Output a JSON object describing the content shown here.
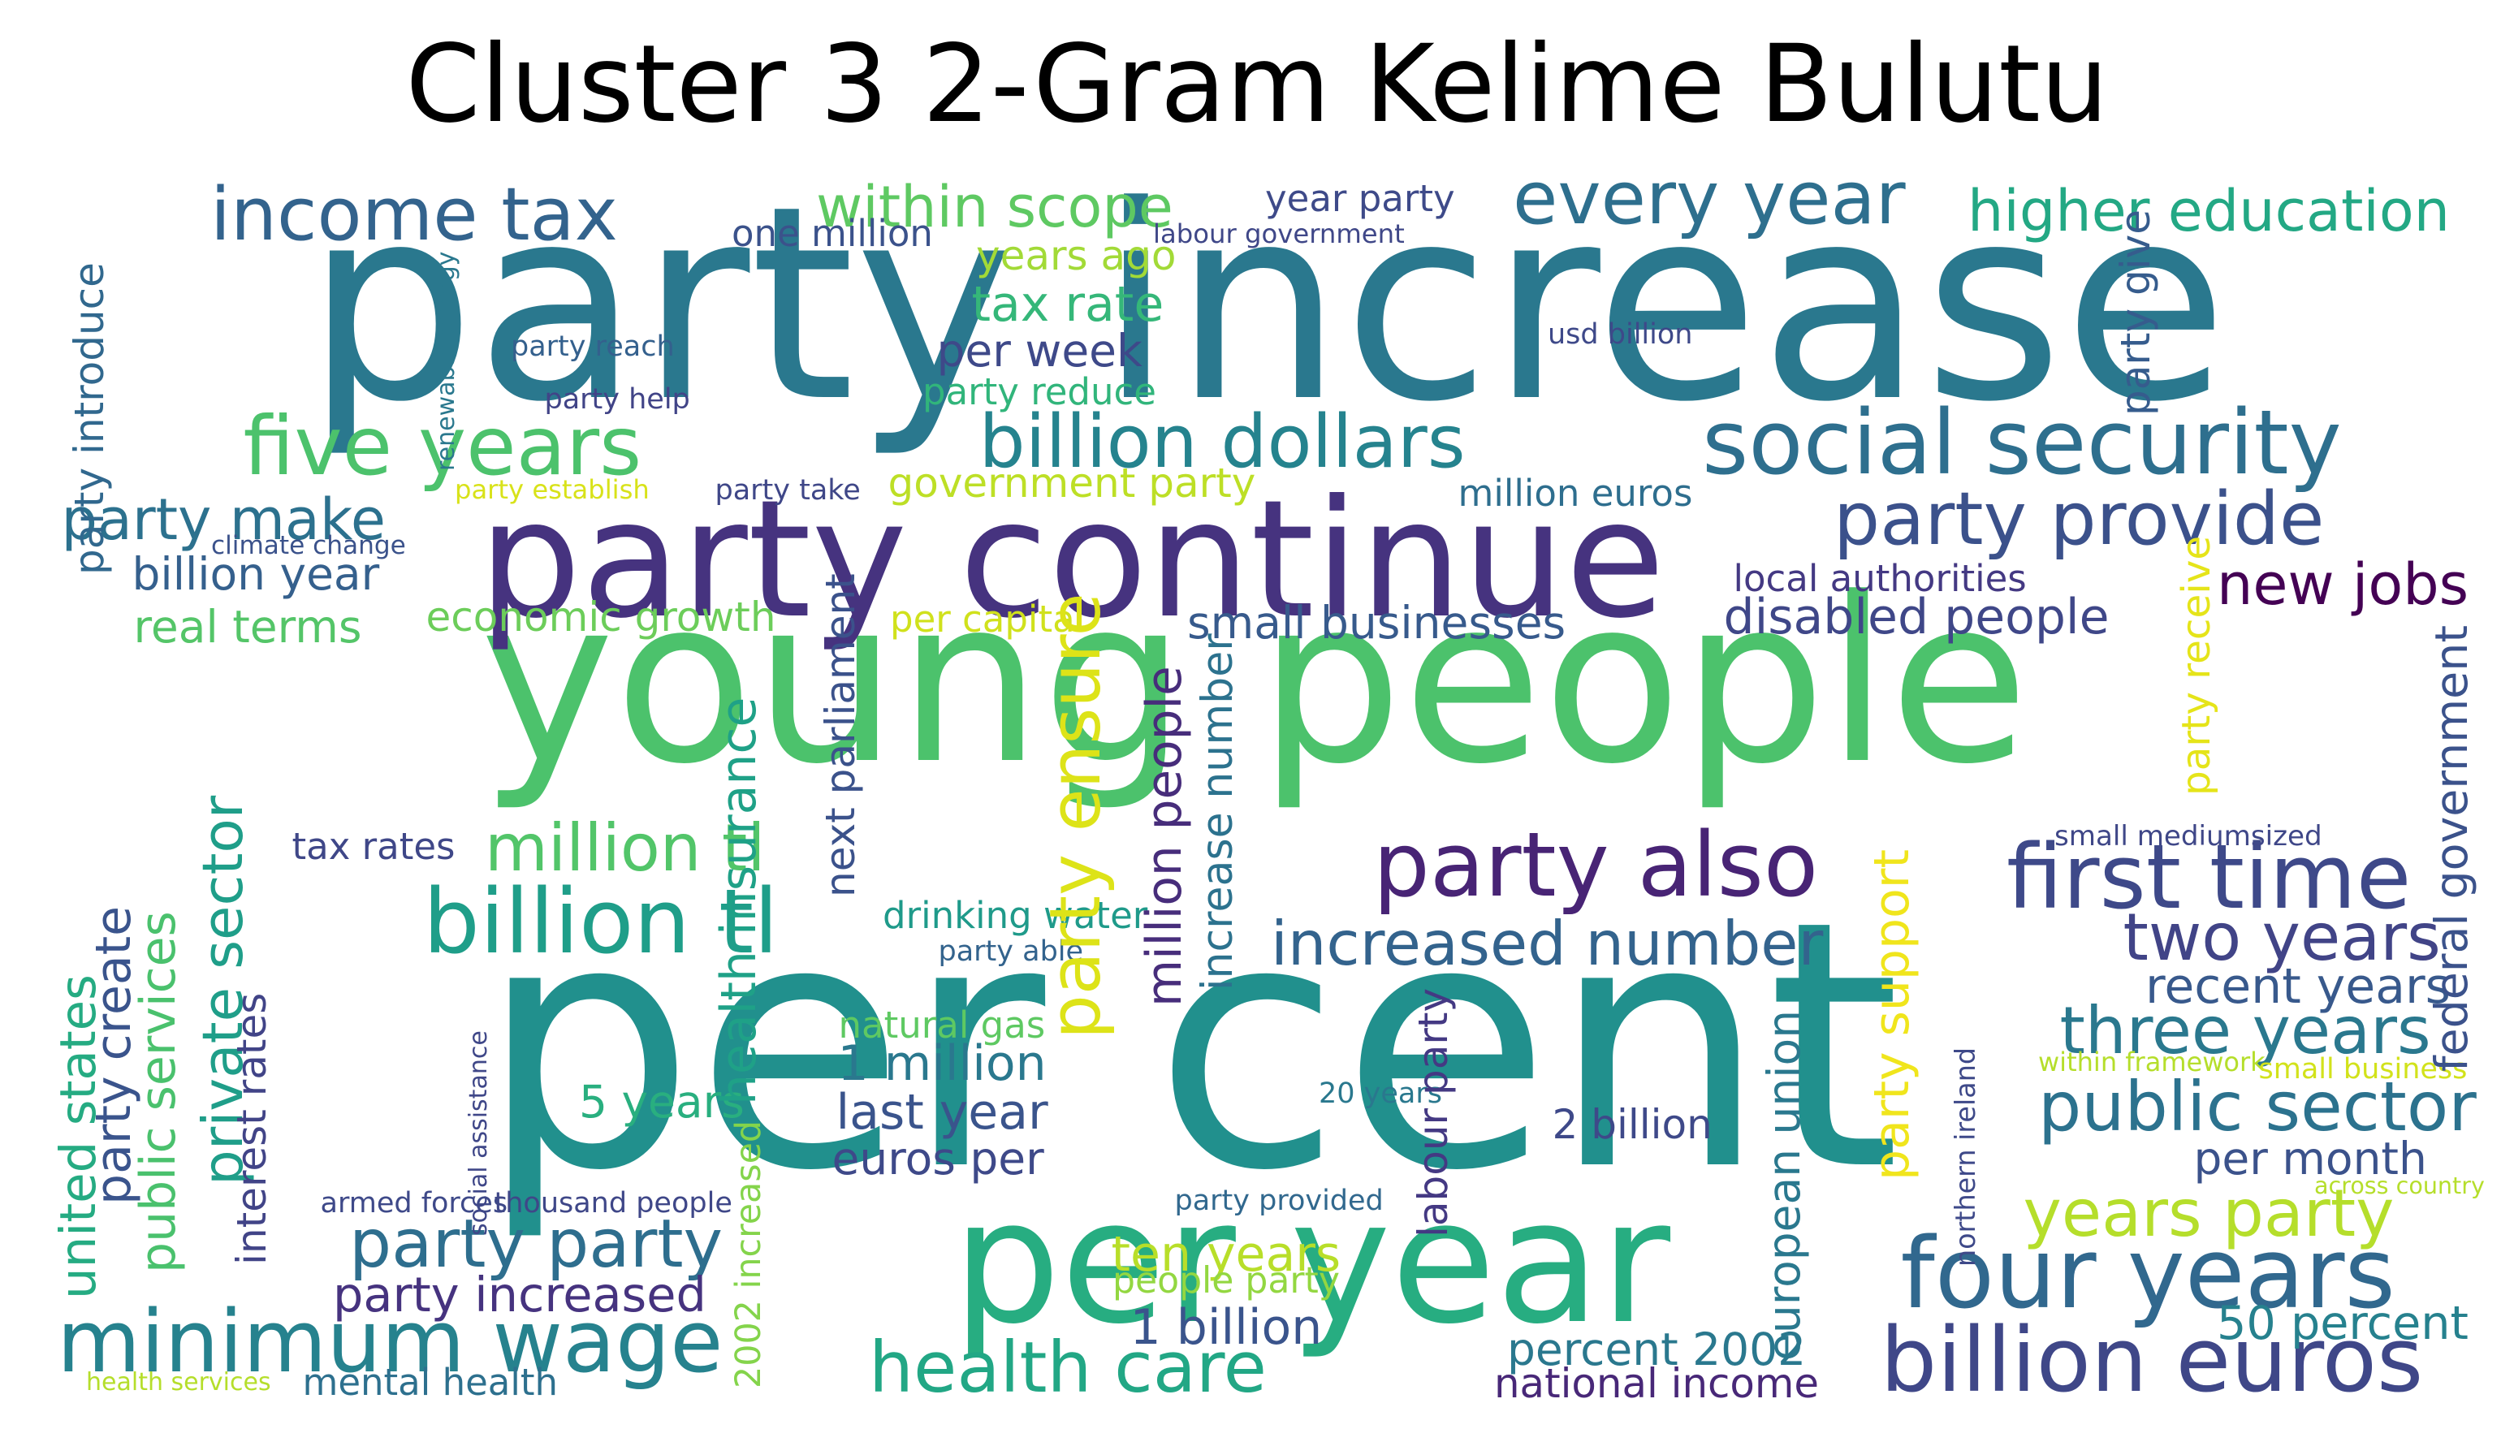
{
  "title": "Cluster 3 2-Gram Kelime Bulutu",
  "words": [
    {
      "t": "party increase",
      "c": "#2a788e",
      "s": 100
    },
    {
      "t": "young people",
      "c": "#4cc26c",
      "s": 100
    },
    {
      "t": "per cent",
      "c": "#21908d",
      "s": 100
    },
    {
      "t": "per year",
      "c": "#27ad81",
      "s": 68
    },
    {
      "t": "party continue",
      "c": "#46337f",
      "s": 62
    },
    {
      "t": "income tax",
      "c": "#33638d",
      "s": 32
    },
    {
      "t": "five years",
      "c": "#4cc26c",
      "s": 32
    },
    {
      "t": "within scope",
      "c": "#5ec962",
      "s": 25
    },
    {
      "t": "every year",
      "c": "#2e6f8e",
      "s": 32
    },
    {
      "t": "higher education",
      "c": "#23a884",
      "s": 25
    },
    {
      "t": "billion dollars",
      "c": "#25838e",
      "s": 32
    },
    {
      "t": "social security",
      "c": "#2e6f8e",
      "s": 36
    },
    {
      "t": "party provide",
      "c": "#3b518b",
      "s": 30
    },
    {
      "t": "party make",
      "c": "#2c718e",
      "s": 22
    },
    {
      "t": "billion year",
      "c": "#35608d",
      "s": 18
    },
    {
      "t": "real terms",
      "c": "#54c568",
      "s": 18
    },
    {
      "t": "economic growth",
      "c": "#6ccd5a",
      "s": 16
    },
    {
      "t": "tax rate",
      "c": "#35b779",
      "s": 18
    },
    {
      "t": "per week",
      "c": "#3e4989",
      "s": 18
    },
    {
      "t": "party reduce",
      "c": "#31b57b",
      "s": 14
    },
    {
      "t": "years ago",
      "c": "#a2da37",
      "s": 16
    },
    {
      "t": "government party",
      "c": "#bddf26",
      "s": 16
    },
    {
      "t": "small businesses",
      "c": "#375a8c",
      "s": 18
    },
    {
      "t": "disabled people",
      "c": "#3f4788",
      "s": 18
    },
    {
      "t": "new jobs",
      "c": "#440154",
      "s": 22
    },
    {
      "t": "party also",
      "c": "#482475",
      "s": 32
    },
    {
      "t": "first time",
      "c": "#3e4989",
      "s": 36
    },
    {
      "t": "billion tl",
      "c": "#1f9e89",
      "s": 36
    },
    {
      "t": "million tl",
      "c": "#52c569",
      "s": 25
    },
    {
      "t": "increased number",
      "c": "#33638d",
      "s": 25
    },
    {
      "t": "two years",
      "c": "#414487",
      "s": 25
    },
    {
      "t": "three years",
      "c": "#2a788e",
      "s": 25
    },
    {
      "t": "public sector",
      "c": "#2c728e",
      "s": 25
    },
    {
      "t": "recent years",
      "c": "#38598c",
      "s": 18
    },
    {
      "t": "per month",
      "c": "#3b528b",
      "s": 18
    },
    {
      "t": "years party",
      "c": "#b5de2b",
      "s": 25
    },
    {
      "t": "four years",
      "c": "#31688e",
      "s": 36
    },
    {
      "t": "billion euros",
      "c": "#3f4788",
      "s": 32
    },
    {
      "t": "50 percent",
      "c": "#26818e",
      "s": 18
    },
    {
      "t": "minimum wage",
      "c": "#26828e",
      "s": 36
    },
    {
      "t": "party party",
      "c": "#2e6e8e",
      "s": 25
    },
    {
      "t": "party increased",
      "c": "#46337f",
      "s": 18
    },
    {
      "t": "health care",
      "c": "#22a785",
      "s": 25
    },
    {
      "t": "1 billion",
      "c": "#3a548c",
      "s": 18
    },
    {
      "t": "percent 2002",
      "c": "#2a788e",
      "s": 18
    },
    {
      "t": "national income",
      "c": "#482878",
      "s": 16
    },
    {
      "t": "ten years",
      "c": "#b8de29",
      "s": 18
    },
    {
      "t": "people party",
      "c": "#93d741",
      "s": 14
    },
    {
      "t": "euros per",
      "c": "#3e4989",
      "s": 16
    },
    {
      "t": "last year",
      "c": "#3a548c",
      "s": 18
    },
    {
      "t": "1 million",
      "c": "#2a788e",
      "s": 18
    },
    {
      "t": "natural gas",
      "c": "#5ec962",
      "s": 14
    },
    {
      "t": "5 years",
      "c": "#29af7f",
      "s": 18
    },
    {
      "t": "mental health",
      "c": "#2d708e",
      "s": 14
    },
    {
      "t": "health services",
      "c": "#b5de2b",
      "s": 10
    },
    {
      "t": "tax rates",
      "c": "#3f4788",
      "s": 14
    },
    {
      "t": "drinking water",
      "c": "#1f9a8a",
      "s": 14
    },
    {
      "t": "party able",
      "c": "#33638d",
      "s": 10
    },
    {
      "t": "one million",
      "c": "#3b528b",
      "s": 14
    },
    {
      "t": "year party",
      "c": "#3e4a89",
      "s": 14
    },
    {
      "t": "labour government",
      "c": "#3f4788",
      "s": 10
    },
    {
      "t": "party reach",
      "c": "#34608d",
      "s": 10
    },
    {
      "t": "party help",
      "c": "#414487",
      "s": 10
    },
    {
      "t": "party establish",
      "c": "#d8e219",
      "s": 10
    },
    {
      "t": "party take",
      "c": "#3f4788",
      "s": 10
    },
    {
      "t": "climate change",
      "c": "#3b528b",
      "s": 10
    },
    {
      "t": "usd billion",
      "c": "#3e4989",
      "s": 10
    },
    {
      "t": "million euros",
      "c": "#2e6e8e",
      "s": 14
    },
    {
      "t": "local authorities",
      "c": "#443983",
      "s": 14
    },
    {
      "t": "per capita",
      "c": "#d0e11c",
      "s": 14
    },
    {
      "t": "small mediumsized",
      "c": "#3f4788",
      "s": 10
    },
    {
      "t": "within framework",
      "c": "#b5de2b",
      "s": 10
    },
    {
      "t": "small business",
      "c": "#d2e21b",
      "s": 10
    },
    {
      "t": "20 years",
      "c": "#2a788e",
      "s": 10
    },
    {
      "t": "2 billion",
      "c": "#3e4989",
      "s": 14
    },
    {
      "t": "armed forces",
      "c": "#3e4989",
      "s": 10
    },
    {
      "t": "thousand people",
      "c": "#3f4788",
      "s": 10
    },
    {
      "t": "party provided",
      "c": "#31688e",
      "s": 10
    },
    {
      "t": "across country",
      "c": "#b5de2b",
      "s": 10
    },
    {
      "t": "party introduce",
      "c": "#31688e",
      "s": 16
    },
    {
      "t": "renewable energy",
      "c": "#2a788e",
      "s": 10
    },
    {
      "t": "united states",
      "c": "#25ab82",
      "s": 18
    },
    {
      "t": "party create",
      "c": "#3a548c",
      "s": 18
    },
    {
      "t": "public services",
      "c": "#4ac16d",
      "s": 18
    },
    {
      "t": "private sector",
      "c": "#1f9e89",
      "s": 25
    },
    {
      "t": "interest rates",
      "c": "#414487",
      "s": 16
    },
    {
      "t": "social assistance",
      "c": "#3f4788",
      "s": 10
    },
    {
      "t": "health insurance",
      "c": "#1fa187",
      "s": 18
    },
    {
      "t": "2002 increased",
      "c": "#84d44b",
      "s": 16
    },
    {
      "t": "next parliament",
      "c": "#3b528b",
      "s": 14
    },
    {
      "t": "party ensure",
      "c": "#dde318",
      "s": 32
    },
    {
      "t": "million people",
      "c": "#472d7b",
      "s": 25
    },
    {
      "t": "increase number",
      "c": "#2c728e",
      "s": 18
    },
    {
      "t": "labour party",
      "c": "#443983",
      "s": 14
    },
    {
      "t": "european union",
      "c": "#2a788e",
      "s": 18
    },
    {
      "t": "party support",
      "c": "#f0e51c",
      "s": 18
    },
    {
      "t": "northern ireland",
      "c": "#3e4989",
      "s": 10
    },
    {
      "t": "party receive",
      "c": "#e5e419",
      "s": 14
    },
    {
      "t": "federal government",
      "c": "#3b528b",
      "s": 18
    },
    {
      "t": "party give",
      "c": "#365c8d",
      "s": 14
    }
  ]
}
